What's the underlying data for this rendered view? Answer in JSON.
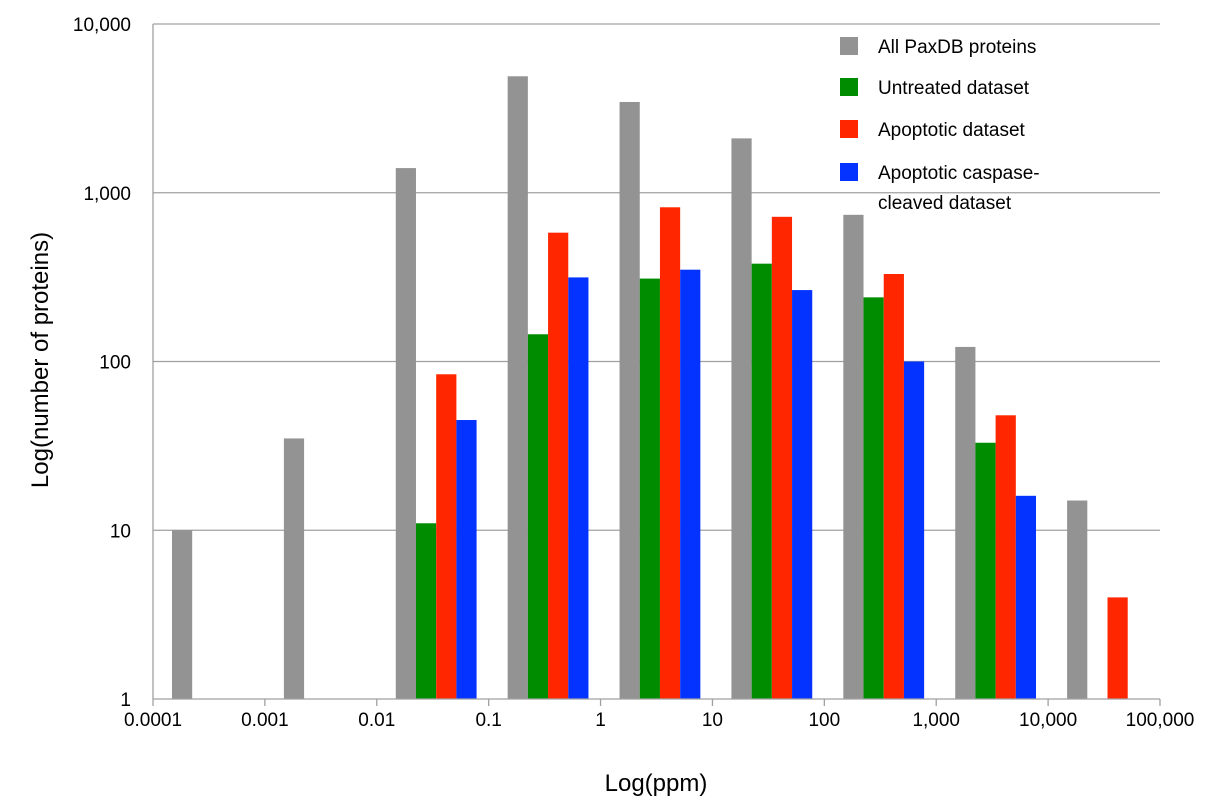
{
  "chart_data": {
    "type": "bar",
    "x_tick_labels": [
      "0.0001",
      "0.001",
      "0.01",
      "0.1",
      "1",
      "10",
      "100",
      "1,000",
      "10,000",
      "100,000"
    ],
    "y_tick_labels": [
      "1",
      "10",
      "100",
      "1,000",
      "10,000"
    ],
    "y_tick_values": [
      1,
      10,
      100,
      1000,
      10000
    ],
    "xlabel": "Log(ppm)",
    "ylabel": "Log(number of proteins)",
    "yscale": "log",
    "ylim": [
      1,
      10000
    ],
    "grid": "horizontal",
    "legend_position": "top-right",
    "series": [
      {
        "name": "All PaxDB proteins",
        "color": "#939393",
        "values": [
          10,
          35,
          1400,
          4900,
          3450,
          2100,
          740,
          122,
          15
        ]
      },
      {
        "name": "Untreated dataset",
        "color": "#008c00",
        "values": [
          null,
          null,
          11,
          145,
          310,
          380,
          240,
          33,
          null
        ]
      },
      {
        "name": "Apoptotic dataset",
        "color": "#ff2600",
        "values": [
          null,
          null,
          84,
          580,
          820,
          720,
          330,
          48,
          4
        ]
      },
      {
        "name": "Apoptotic caspase-cleaved dataset",
        "color": "#0433ff",
        "values": [
          null,
          null,
          45,
          315,
          350,
          265,
          100,
          16,
          null
        ]
      }
    ]
  }
}
